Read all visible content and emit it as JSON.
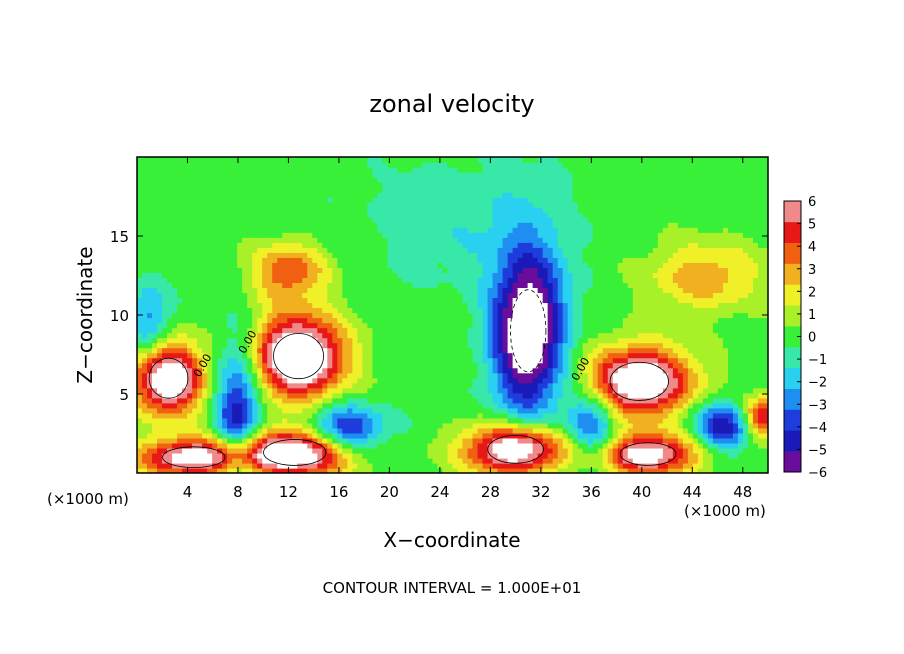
{
  "chart_data": {
    "type": "heatmap",
    "title": "zonal velocity",
    "xlabel": "X−coordinate",
    "ylabel": "Z−coordinate",
    "x_units_left": "(×1000 m)",
    "x_units_right": "(×1000 m)",
    "xlim": [
      0,
      50
    ],
    "ylim": [
      0,
      20
    ],
    "x_ticks": [
      4,
      8,
      12,
      16,
      20,
      24,
      28,
      32,
      36,
      40,
      44,
      48
    ],
    "y_ticks": [
      5,
      10,
      15
    ],
    "contour_label": "0.00",
    "footer": "CONTOUR INTERVAL = 1.000E+01",
    "colorbar": {
      "min": -6,
      "max": 6,
      "ticks": [
        6,
        5,
        4,
        3,
        2,
        1,
        0,
        -1,
        -2,
        -3,
        -4,
        -5,
        -6
      ],
      "colors": [
        "#6a0d9a",
        "#1a1ab8",
        "#1e3ddc",
        "#1e8ef0",
        "#2ad0f0",
        "#38e8a8",
        "#38f038",
        "#a8f028",
        "#f0f028",
        "#f0b020",
        "#f06010",
        "#e81818",
        "#f08a8a"
      ]
    },
    "features": {
      "positive": [
        {
          "x": 2.5,
          "z": 6.0,
          "rx": 2.8,
          "rz": 2.3,
          "amp": 8
        },
        {
          "x": 12.8,
          "z": 7.4,
          "rx": 3.6,
          "rz": 2.6,
          "amp": 9
        },
        {
          "x": 4.5,
          "z": 1.0,
          "rx": 4.5,
          "rz": 1.2,
          "amp": 7
        },
        {
          "x": 12.5,
          "z": 1.3,
          "rx": 4.5,
          "rz": 1.5,
          "amp": 8
        },
        {
          "x": 30.0,
          "z": 1.5,
          "rx": 4.0,
          "rz": 1.6,
          "amp": 8
        },
        {
          "x": 39.8,
          "z": 5.8,
          "rx": 4.2,
          "rz": 2.2,
          "amp": 8
        },
        {
          "x": 40.5,
          "z": 1.2,
          "rx": 4.0,
          "rz": 1.3,
          "amp": 7
        },
        {
          "x": 49.5,
          "z": 3.5,
          "rx": 1.5,
          "rz": 1.3,
          "amp": 6
        },
        {
          "x": 12.0,
          "z": 12.8,
          "rx": 3.0,
          "rz": 1.8,
          "amp": 4
        },
        {
          "x": 45.0,
          "z": 12.5,
          "rx": 4.5,
          "rz": 2.2,
          "amp": 3
        }
      ],
      "negative": [
        {
          "x": 31.0,
          "z": 9.0,
          "rx": 2.8,
          "rz": 5.2,
          "amp": 8
        },
        {
          "x": 8.0,
          "z": 4.0,
          "rx": 1.8,
          "rz": 4.5,
          "amp": 5
        },
        {
          "x": 16.5,
          "z": 2.8,
          "rx": 3.0,
          "rz": 1.5,
          "amp": 5
        },
        {
          "x": 36.0,
          "z": 3.0,
          "rx": 2.0,
          "rz": 2.5,
          "amp": 4
        },
        {
          "x": 46.5,
          "z": 3.0,
          "rx": 2.5,
          "rz": 1.5,
          "amp": 5
        },
        {
          "x": 1.0,
          "z": 9.5,
          "rx": 1.6,
          "rz": 2.5,
          "amp": 3
        },
        {
          "x": 26.0,
          "z": 16.0,
          "rx": 8.0,
          "rz": 4.0,
          "amp": 1.2
        }
      ]
    }
  }
}
